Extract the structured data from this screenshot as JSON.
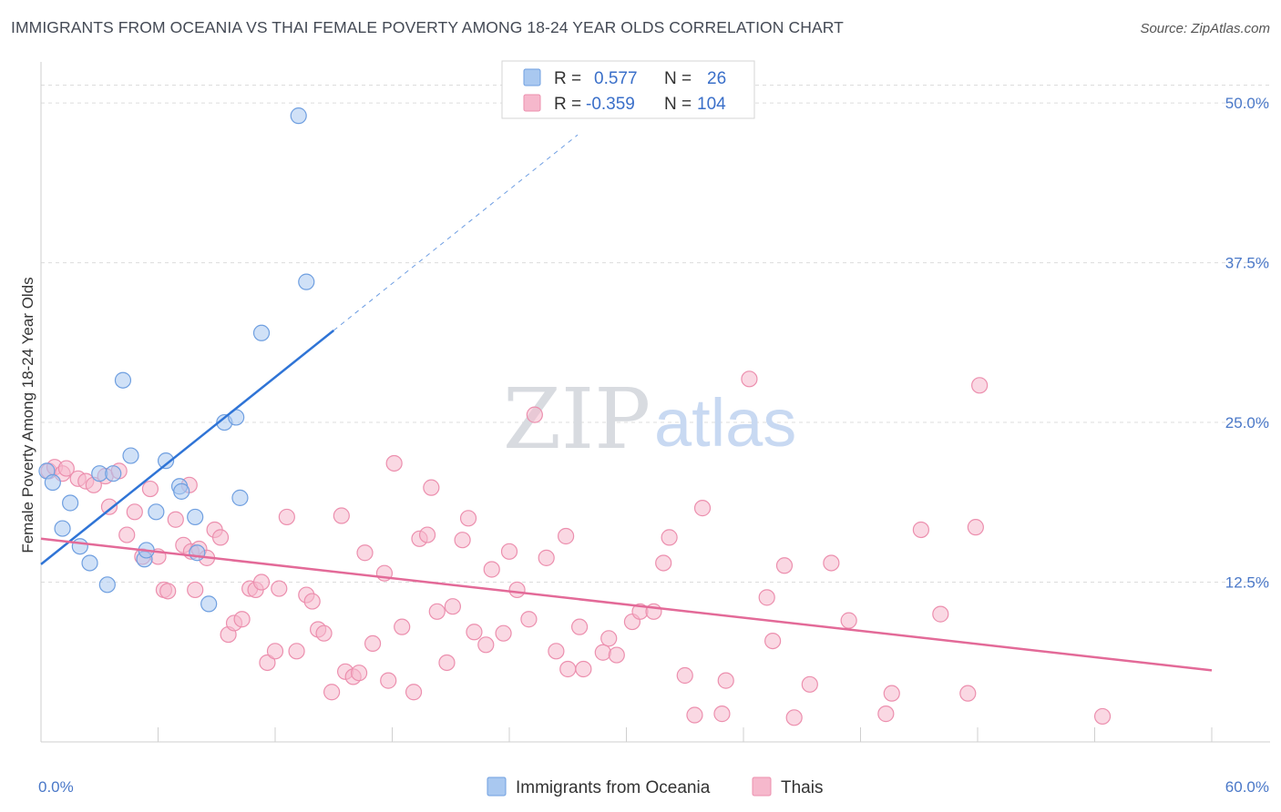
{
  "title": "IMMIGRANTS FROM OCEANIA VS THAI FEMALE POVERTY AMONG 18-24 YEAR OLDS CORRELATION CHART",
  "source": "Source: ZipAtlas.com",
  "watermark": {
    "zip": "ZIP",
    "atlas": "atlas"
  },
  "colors": {
    "blue_fill": "#a9c8f0",
    "blue_stroke": "#6f9fe0",
    "blue_line": "#2f74d6",
    "pink_fill": "#f6b8cc",
    "pink_stroke": "#ec8fae",
    "pink_line": "#e36a98",
    "grid": "#dcdcdc",
    "tick_label": "#4a78c8"
  },
  "legend": {
    "rows": [
      {
        "r_label": "R =",
        "r_value": "0.577",
        "n_label": "N =",
        "n_value": "26",
        "series": "blue"
      },
      {
        "r_label": "R =",
        "r_value": "-0.359",
        "n_label": "N =",
        "n_value": "104",
        "series": "pink"
      }
    ]
  },
  "chart_data": {
    "type": "scatter",
    "title": "IMMIGRANTS FROM OCEANIA VS THAI FEMALE POVERTY AMONG 18-24 YEAR OLDS CORRELATION CHART",
    "xlabel": "",
    "ylabel": "Female Poverty Among 18-24 Year Olds",
    "xlim": [
      0,
      60
    ],
    "ylim": [
      0,
      52.5
    ],
    "x_tick_labels": [
      {
        "value": 0,
        "label": "0.0%"
      },
      {
        "value": 60,
        "label": "60.0%"
      }
    ],
    "y_ticks": [
      {
        "value": 12.5,
        "label": "12.5%"
      },
      {
        "value": 25.0,
        "label": "25.0%"
      },
      {
        "value": 37.5,
        "label": "37.5%"
      },
      {
        "value": 50.0,
        "label": "50.0%"
      }
    ],
    "grid": true,
    "legend_position": "top-center",
    "series": [
      {
        "name": "Immigrants from Oceania",
        "color": "#a9c8f0",
        "points": [
          [
            0.3,
            21.2
          ],
          [
            0.6,
            20.3
          ],
          [
            1.1,
            16.7
          ],
          [
            1.5,
            18.7
          ],
          [
            2.0,
            15.3
          ],
          [
            2.5,
            14.0
          ],
          [
            3.4,
            12.3
          ],
          [
            3.0,
            21.0
          ],
          [
            3.7,
            21.0
          ],
          [
            4.2,
            28.3
          ],
          [
            4.6,
            22.4
          ],
          [
            5.3,
            14.3
          ],
          [
            5.4,
            15.0
          ],
          [
            5.9,
            18.0
          ],
          [
            6.4,
            22.0
          ],
          [
            7.1,
            20.0
          ],
          [
            7.2,
            19.6
          ],
          [
            7.9,
            17.6
          ],
          [
            8.0,
            14.8
          ],
          [
            8.6,
            10.8
          ],
          [
            9.4,
            25.0
          ],
          [
            10.0,
            25.4
          ],
          [
            10.2,
            19.1
          ],
          [
            11.3,
            32.0
          ],
          [
            13.2,
            49.0
          ],
          [
            13.6,
            36.0
          ]
        ],
        "trend": {
          "x0": 0,
          "y0": 13.9,
          "x1": 15.0,
          "y1": 32.2,
          "dashed_to": {
            "x": 27.5,
            "y": 47.5
          }
        }
      },
      {
        "name": "Thais",
        "color": "#f6b8cc",
        "points": [
          [
            0.4,
            21.2
          ],
          [
            0.7,
            21.5
          ],
          [
            1.1,
            21.0
          ],
          [
            1.3,
            21.4
          ],
          [
            1.9,
            20.6
          ],
          [
            2.3,
            20.4
          ],
          [
            2.7,
            20.1
          ],
          [
            3.3,
            20.8
          ],
          [
            3.5,
            18.4
          ],
          [
            4.0,
            21.2
          ],
          [
            4.4,
            16.2
          ],
          [
            4.8,
            18.0
          ],
          [
            5.2,
            14.5
          ],
          [
            5.6,
            19.8
          ],
          [
            6.0,
            14.5
          ],
          [
            6.3,
            11.9
          ],
          [
            6.5,
            11.8
          ],
          [
            6.9,
            17.4
          ],
          [
            7.3,
            15.4
          ],
          [
            7.6,
            20.1
          ],
          [
            7.7,
            14.9
          ],
          [
            7.9,
            11.9
          ],
          [
            8.1,
            15.1
          ],
          [
            8.5,
            14.4
          ],
          [
            8.9,
            16.6
          ],
          [
            9.2,
            16.0
          ],
          [
            9.6,
            8.4
          ],
          [
            9.9,
            9.3
          ],
          [
            10.3,
            9.6
          ],
          [
            10.7,
            12.0
          ],
          [
            11.0,
            11.9
          ],
          [
            11.3,
            12.5
          ],
          [
            11.6,
            6.2
          ],
          [
            12.0,
            7.1
          ],
          [
            12.2,
            12.0
          ],
          [
            12.6,
            17.6
          ],
          [
            13.1,
            7.1
          ],
          [
            13.6,
            11.5
          ],
          [
            13.9,
            11.0
          ],
          [
            14.2,
            8.8
          ],
          [
            14.5,
            8.5
          ],
          [
            14.9,
            3.9
          ],
          [
            15.4,
            17.7
          ],
          [
            15.6,
            5.5
          ],
          [
            16.0,
            5.1
          ],
          [
            16.3,
            5.4
          ],
          [
            16.6,
            14.8
          ],
          [
            17.0,
            7.7
          ],
          [
            17.6,
            13.2
          ],
          [
            17.8,
            4.8
          ],
          [
            18.1,
            21.8
          ],
          [
            18.5,
            9.0
          ],
          [
            19.1,
            3.9
          ],
          [
            19.4,
            15.9
          ],
          [
            19.8,
            16.2
          ],
          [
            20.0,
            19.9
          ],
          [
            20.3,
            10.2
          ],
          [
            20.8,
            6.2
          ],
          [
            21.1,
            10.6
          ],
          [
            21.6,
            15.8
          ],
          [
            21.9,
            17.5
          ],
          [
            22.2,
            8.6
          ],
          [
            22.8,
            7.6
          ],
          [
            23.1,
            13.5
          ],
          [
            23.7,
            8.5
          ],
          [
            24.0,
            14.9
          ],
          [
            24.4,
            11.9
          ],
          [
            25.0,
            9.6
          ],
          [
            25.3,
            25.6
          ],
          [
            25.9,
            14.4
          ],
          [
            26.4,
            7.1
          ],
          [
            26.9,
            16.1
          ],
          [
            27.0,
            5.7
          ],
          [
            27.6,
            9.0
          ],
          [
            27.8,
            5.7
          ],
          [
            28.8,
            7.0
          ],
          [
            29.1,
            8.1
          ],
          [
            29.5,
            6.8
          ],
          [
            30.3,
            9.4
          ],
          [
            30.7,
            10.2
          ],
          [
            31.4,
            10.2
          ],
          [
            31.9,
            14.0
          ],
          [
            32.2,
            16.0
          ],
          [
            33.0,
            5.2
          ],
          [
            33.5,
            2.1
          ],
          [
            33.9,
            18.3
          ],
          [
            34.9,
            2.2
          ],
          [
            35.1,
            4.8
          ],
          [
            36.3,
            28.4
          ],
          [
            37.2,
            11.3
          ],
          [
            37.5,
            7.9
          ],
          [
            38.1,
            13.8
          ],
          [
            38.6,
            1.9
          ],
          [
            39.4,
            4.5
          ],
          [
            40.5,
            14.0
          ],
          [
            41.4,
            9.5
          ],
          [
            43.3,
            2.2
          ],
          [
            43.6,
            3.8
          ],
          [
            45.1,
            16.6
          ],
          [
            46.1,
            10.0
          ],
          [
            47.5,
            3.8
          ],
          [
            47.9,
            16.8
          ],
          [
            48.1,
            27.9
          ],
          [
            54.4,
            2.0
          ]
        ],
        "trend": {
          "x0": 0,
          "y0": 15.9,
          "x1": 60,
          "y1": 5.6
        }
      }
    ]
  },
  "bottom_legend": [
    {
      "label": "Immigrants from Oceania",
      "series": "blue"
    },
    {
      "label": "Thais",
      "series": "pink"
    }
  ]
}
